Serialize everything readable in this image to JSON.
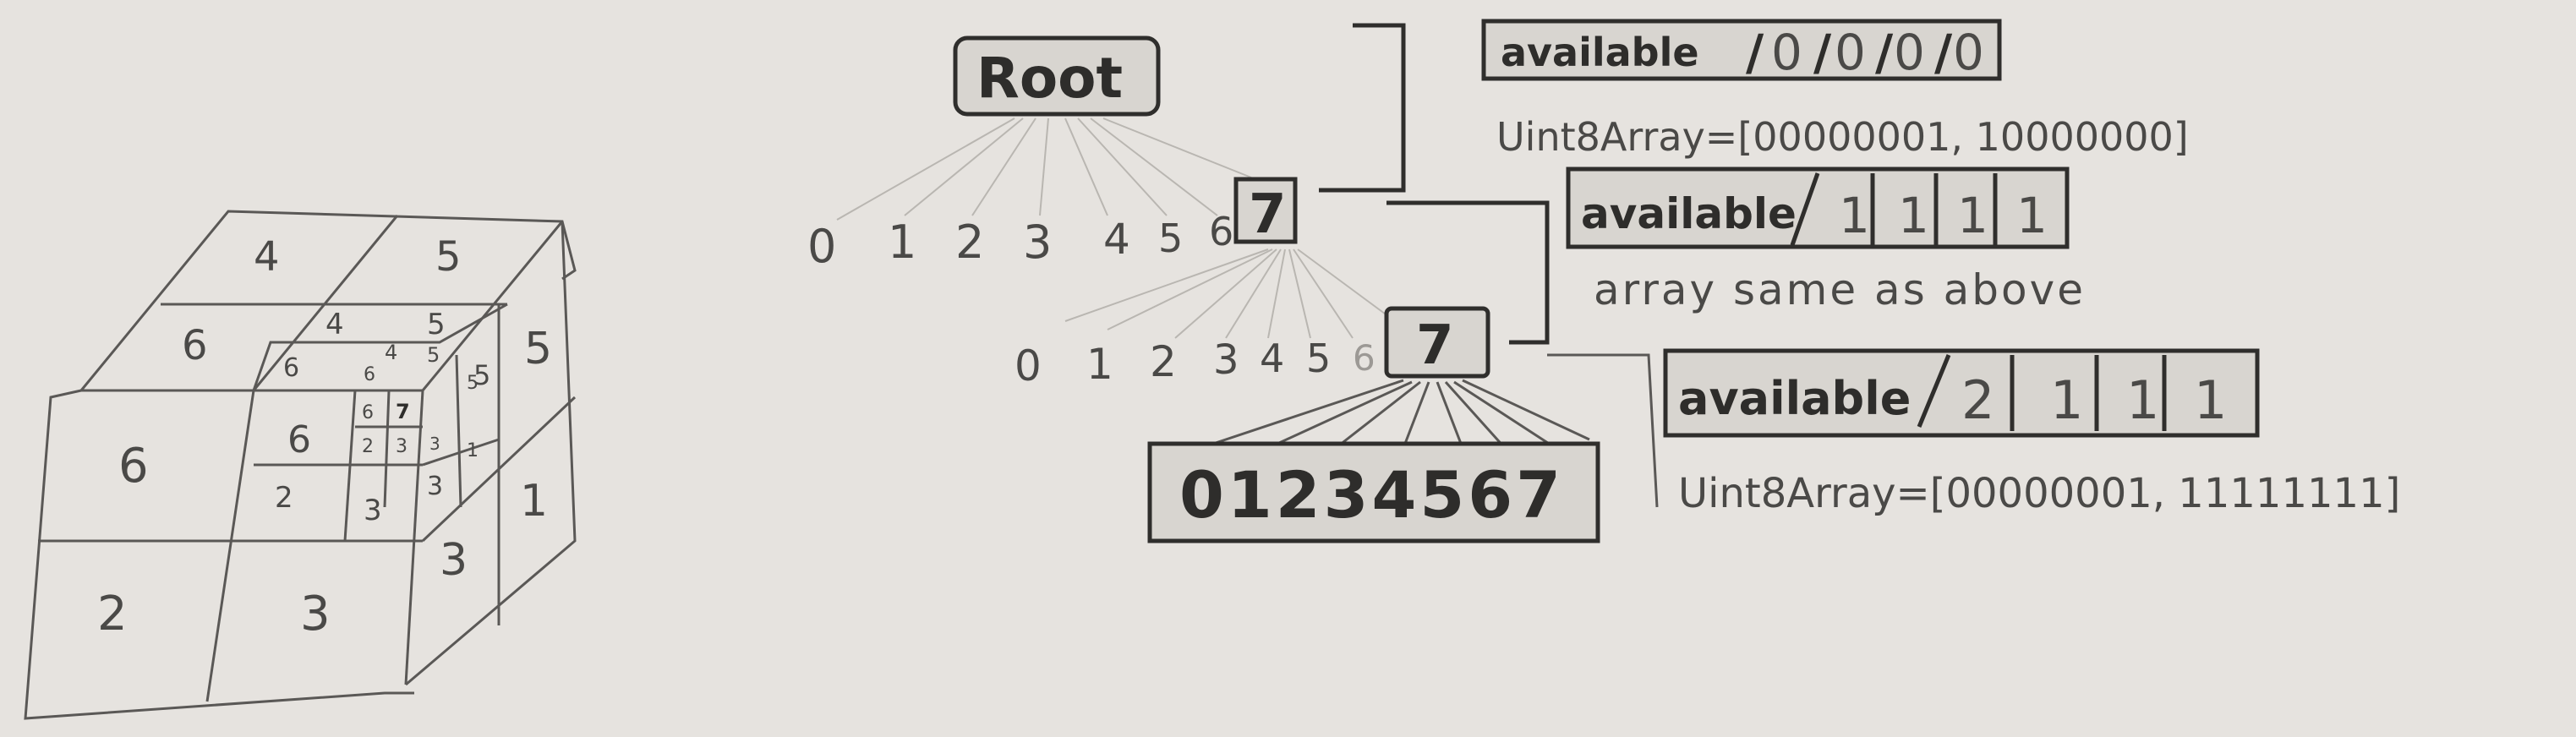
{
  "octree": {
    "root_label": "Root",
    "level1": {
      "children": [
        "0",
        "1",
        "2",
        "3",
        "4",
        "5",
        "6"
      ],
      "selected": "7"
    },
    "level2": {
      "children": [
        "0",
        "1",
        "2",
        "3",
        "4",
        "5",
        "6"
      ],
      "selected": "7"
    },
    "leaf_row": "01234567"
  },
  "cube": {
    "top": [
      "4",
      "5",
      "6"
    ],
    "front": [
      "6",
      "2",
      "3"
    ],
    "side": [
      "5",
      "1",
      "3"
    ],
    "mid_top": [
      "4",
      "5",
      "6"
    ],
    "mid_front": [
      "6",
      "2",
      "3"
    ],
    "mid_side": [
      "5",
      "3"
    ],
    "inner_top": [
      "4",
      "5",
      "6"
    ],
    "inner_front": [
      "6",
      "7",
      "2",
      "3"
    ],
    "inner_side": [
      "5",
      "3",
      "1"
    ]
  },
  "notes": {
    "row1": {
      "label": "available",
      "cells": [
        "0",
        "0",
        "0",
        "0"
      ],
      "array": "Uint8Array=[00000001, 10000000]"
    },
    "row2": {
      "label": "available",
      "cells": [
        "1",
        "1",
        "1",
        "1"
      ],
      "array": "array same as above"
    },
    "row3": {
      "label": "available",
      "cells": [
        "2",
        "1",
        "1",
        "1"
      ],
      "array": "Uint8Array=[00000001, 11111111]"
    }
  },
  "colors": {
    "paper": "#e6e3df",
    "pencil": "#4a4947",
    "pencil_dark": "#2e2d2b"
  }
}
